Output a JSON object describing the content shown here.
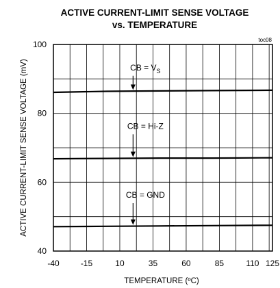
{
  "chart_data": {
    "type": "line",
    "title_line1": "ACTIVE CURRENT-LIMIT SENSE VOLTAGE",
    "title_line2": "vs. TEMPERATURE",
    "tag": "toc08",
    "xlabel": "TEMPERATURE (ºC)",
    "ylabel": "ACTIVE CURRENT-LIMIT SENSE  VOLTAGE (mV)",
    "xlim": [
      -40,
      125
    ],
    "ylim": [
      40,
      100
    ],
    "x_ticks": [
      -40,
      -15,
      10,
      35,
      60,
      85,
      110,
      125
    ],
    "y_ticks": [
      40,
      60,
      80,
      100
    ],
    "grid": true,
    "series": [
      {
        "x": [
          -40,
          0,
          40,
          80,
          125
        ],
        "values": [
          86.1,
          86.4,
          86.5,
          86.6,
          86.7
        ]
      },
      {
        "x": [
          -40,
          0,
          40,
          80,
          125
        ],
        "values": [
          66.8,
          66.9,
          67.0,
          67.0,
          67.1
        ]
      },
      {
        "x": [
          -40,
          0,
          40,
          80,
          125
        ],
        "values": [
          47.1,
          47.2,
          47.3,
          47.4,
          47.5
        ]
      }
    ],
    "annotations": [
      {
        "text": "CB = V",
        "sub": "S",
        "x": 20,
        "y": 92.5,
        "arrow_to": 86.8
      },
      {
        "text": "CB = Hi-Z",
        "sub": "",
        "x": 20,
        "y": 75.5,
        "arrow_to": 67.3
      },
      {
        "text": "CB = GND",
        "sub": "",
        "x": 20,
        "y": 55.5,
        "arrow_to": 47.6
      }
    ]
  }
}
